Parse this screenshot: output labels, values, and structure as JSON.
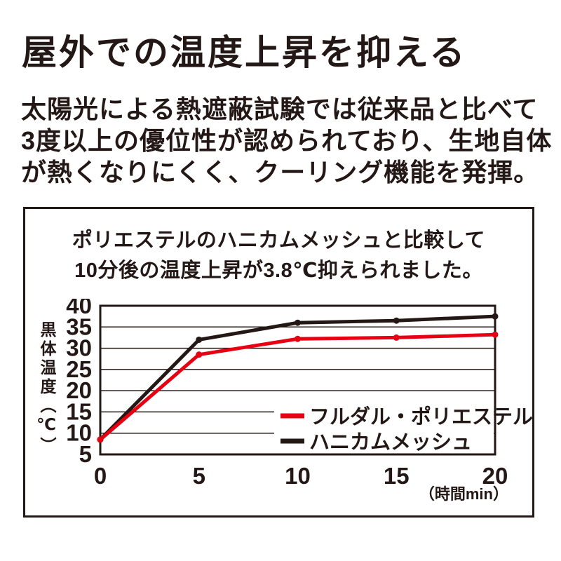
{
  "page": {
    "title": "屋外での温度上昇を抑える",
    "intro_lines": [
      "太陽光による熱遮蔽試験では従来品と比べて",
      "3度以上の優位性が認められており、生地自体",
      "が熱くなりにくく、クーリング機能を発揮。"
    ]
  },
  "comparison_box": {
    "heading_lines": [
      "ポリエステルのハニカムメッシュと比較して",
      "10分後の温度上昇が3.8℃抑えられました。"
    ]
  },
  "chart_data": {
    "type": "line",
    "title": "",
    "ylabel": "黒体温度（℃）",
    "xunit_label": "（時間min）",
    "x": [
      0,
      5,
      10,
      15,
      20
    ],
    "series": [
      {
        "name": "フルダル・ポリエステル",
        "color": "#e60012",
        "values": [
          8.5,
          28.5,
          32.2,
          32.5,
          33.2
        ]
      },
      {
        "name": "ハニカムメッシュ",
        "color": "#231815",
        "values": [
          8.5,
          32.0,
          36.0,
          36.5,
          37.5
        ]
      }
    ],
    "xticks": [
      0,
      5,
      10,
      15,
      20
    ],
    "yticks": [
      40,
      35,
      30,
      25,
      20,
      15,
      10,
      5
    ],
    "xlim": [
      0,
      20
    ],
    "ylim": [
      5,
      40
    ],
    "grid": true,
    "legend_position": "inside-bottom-right",
    "colors": {
      "ink": "#231815",
      "accent": "#e60012",
      "background": "#ffffff"
    }
  }
}
